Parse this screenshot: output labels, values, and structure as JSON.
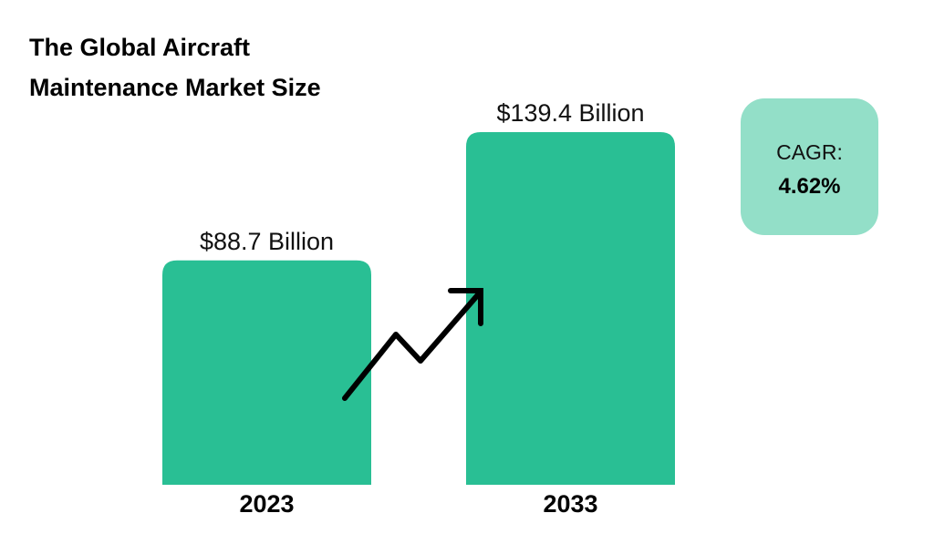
{
  "chart_data": {
    "type": "bar",
    "title": "The Global Aircraft Maintenance Market Size",
    "categories": [
      "2023",
      "2033"
    ],
    "values": [
      88.7,
      139.4
    ],
    "data_labels": [
      "$88.7 Billion",
      "$139.4 Billion"
    ],
    "unit": "USD Billion",
    "xlabel": "",
    "ylabel": "",
    "ylim": [
      0,
      139.4
    ],
    "grid": false,
    "bar_color": "#29bf94",
    "annotation": {
      "label": "CAGR:",
      "value": "4.62%",
      "color": "#93dfc8"
    },
    "trend_arrow": "up"
  }
}
